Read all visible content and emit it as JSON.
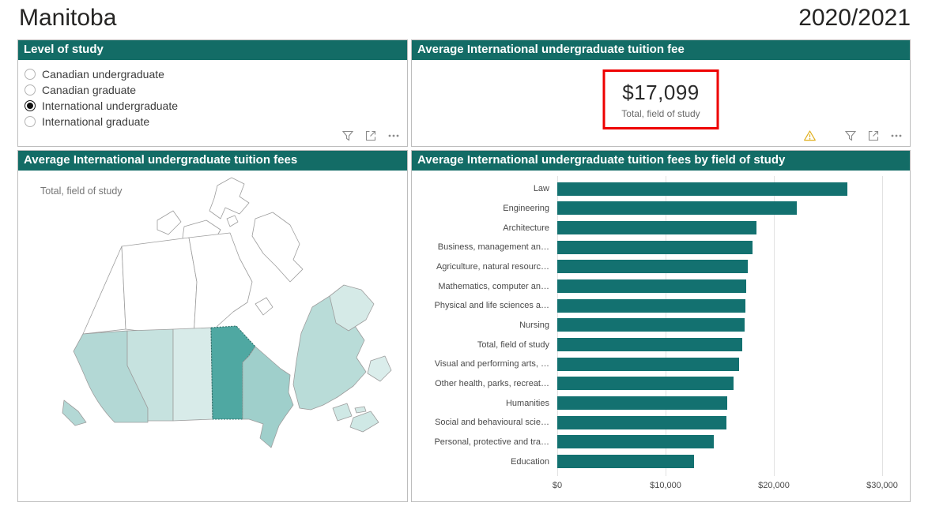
{
  "page": {
    "title": "Manitoba",
    "year": "2020/2021"
  },
  "level_panel": {
    "title": "Level of study",
    "options": [
      {
        "label": "Canadian undergraduate",
        "selected": false
      },
      {
        "label": "Canadian graduate",
        "selected": false
      },
      {
        "label": "International undergraduate",
        "selected": true
      },
      {
        "label": "International graduate",
        "selected": false
      }
    ]
  },
  "card_panel": {
    "title": "Average International undergraduate tuition fee",
    "value": "$17,099",
    "label": "Total, field of study"
  },
  "map_panel": {
    "title": "Average International undergraduate tuition fees",
    "legend_label": "Total, field of study",
    "provinces": [
      {
        "id": "bc",
        "name": "British Columbia",
        "fill": "#b3d8d5"
      },
      {
        "id": "vi",
        "name": "Vancouver Island",
        "fill": "#b3d8d5"
      },
      {
        "id": "ab",
        "name": "Alberta",
        "fill": "#c6e2df"
      },
      {
        "id": "sk",
        "name": "Saskatchewan",
        "fill": "#d8ebe9"
      },
      {
        "id": "mb",
        "name": "Manitoba",
        "fill": "#4fa8a2"
      },
      {
        "id": "on",
        "name": "Ontario",
        "fill": "#9fcfcb"
      },
      {
        "id": "qc",
        "name": "Quebec",
        "fill": "#b9dcd8"
      },
      {
        "id": "lb",
        "name": "Labrador",
        "fill": "#d5eae7"
      },
      {
        "id": "nf",
        "name": "Newfoundland",
        "fill": "#daedeb"
      },
      {
        "id": "nb",
        "name": "New Brunswick",
        "fill": "#cfe8e5"
      },
      {
        "id": "ns",
        "name": "Nova Scotia",
        "fill": "#cfe8e5"
      },
      {
        "id": "pe",
        "name": "Prince Edward Island",
        "fill": "#d4e9e6"
      },
      {
        "id": "yt",
        "name": "Yukon",
        "fill": "#ffffff"
      },
      {
        "id": "nt",
        "name": "Northwest Territories",
        "fill": "#ffffff"
      },
      {
        "id": "nu",
        "name": "Nunavut",
        "fill": "#ffffff"
      }
    ]
  },
  "bar_panel": {
    "title": "Average International undergraduate tuition fees by field of study"
  },
  "chart_data": {
    "type": "bar",
    "orientation": "horizontal",
    "title": "Average International undergraduate tuition fees by field of study",
    "categories": [
      "Law",
      "Engineering",
      "Architecture",
      "Business, management an…",
      "Agriculture, natural resourc…",
      "Mathematics, computer an…",
      "Physical and life sciences a…",
      "Nursing",
      "Total, field of study",
      "Visual and performing arts, …",
      "Other health, parks, recreat…",
      "Humanities",
      "Social and behavioural scie…",
      "Personal, protective and tra…",
      "Education"
    ],
    "values": [
      26800,
      22150,
      18420,
      18000,
      17580,
      17430,
      17380,
      17280,
      17099,
      16760,
      16290,
      15710,
      15590,
      14450,
      12600
    ],
    "xlim": [
      0,
      30000
    ],
    "x_ticks": [
      {
        "label": "$0",
        "value": 0
      },
      {
        "label": "$10,000",
        "value": 10000
      },
      {
        "label": "$20,000",
        "value": 20000
      },
      {
        "label": "$30,000",
        "value": 30000
      }
    ],
    "grid": true,
    "bar_color": "#137170"
  },
  "icons": {
    "toolbar": [
      "filter-icon",
      "focus-mode-icon",
      "more-options-icon"
    ],
    "card_warning": "warning-icon"
  },
  "colors": {
    "header_bg": "#136c66",
    "bar": "#137170",
    "kpi_box_border": "#ee0000",
    "warning": "#e0af1d"
  }
}
